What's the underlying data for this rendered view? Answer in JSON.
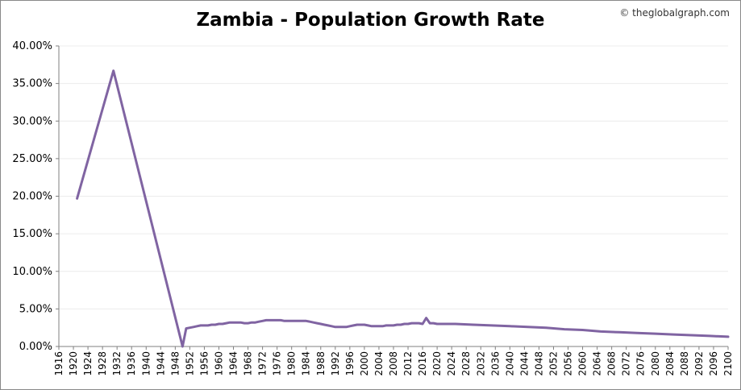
{
  "credit": "© theglobalgraph.com",
  "chart_data": {
    "type": "line",
    "title": "Zambia - Population Growth Rate",
    "xlabel": "",
    "ylabel": "",
    "xlim": [
      1916,
      2100
    ],
    "ylim": [
      0,
      40
    ],
    "y_ticks": [
      "0.00%",
      "5.00%",
      "10.00%",
      "15.00%",
      "20.00%",
      "25.00%",
      "30.00%",
      "35.00%",
      "40.00%"
    ],
    "x_ticks": [
      "1916",
      "1920",
      "1924",
      "1928",
      "1932",
      "1936",
      "1940",
      "1944",
      "1948",
      "1952",
      "1956",
      "1960",
      "1964",
      "1968",
      "1972",
      "1976",
      "1980",
      "1984",
      "1988",
      "1992",
      "1996",
      "2000",
      "2004",
      "2008",
      "2012",
      "2016",
      "2020",
      "2024",
      "2028",
      "2032",
      "2036",
      "2040",
      "2044",
      "2048",
      "2052",
      "2056",
      "2060",
      "2064",
      "2068",
      "2072",
      "2076",
      "2080",
      "2084",
      "2088",
      "2092",
      "2096",
      "2100"
    ],
    "grid": true,
    "line_color": "#8064a2",
    "series": [
      {
        "x": [
          1921,
          1931,
          1950,
          1951,
          1952,
          1953,
          1954,
          1955,
          1956,
          1957,
          1958,
          1959,
          1960,
          1961,
          1962,
          1963,
          1964,
          1965,
          1966,
          1967,
          1968,
          1969,
          1970,
          1971,
          1972,
          1973,
          1974,
          1975,
          1976,
          1977,
          1978,
          1979,
          1980,
          1981,
          1982,
          1983,
          1984,
          1985,
          1986,
          1987,
          1988,
          1989,
          1990,
          1991,
          1992,
          1993,
          1994,
          1995,
          1996,
          1997,
          1998,
          1999,
          2000,
          2001,
          2002,
          2003,
          2004,
          2005,
          2006,
          2007,
          2008,
          2009,
          2010,
          2011,
          2012,
          2013,
          2014,
          2015,
          2016,
          2017,
          2018,
          2019,
          2020,
          2025,
          2030,
          2035,
          2040,
          2045,
          2050,
          2055,
          2060,
          2065,
          2070,
          2075,
          2080,
          2085,
          2090,
          2095,
          2100
        ],
        "y": [
          19.7,
          36.7,
          0.0,
          2.4,
          2.5,
          2.6,
          2.7,
          2.8,
          2.8,
          2.8,
          2.9,
          2.9,
          3.0,
          3.0,
          3.1,
          3.2,
          3.2,
          3.2,
          3.2,
          3.1,
          3.1,
          3.2,
          3.2,
          3.3,
          3.4,
          3.5,
          3.5,
          3.5,
          3.5,
          3.5,
          3.4,
          3.4,
          3.4,
          3.4,
          3.4,
          3.4,
          3.4,
          3.3,
          3.2,
          3.1,
          3.0,
          2.9,
          2.8,
          2.7,
          2.6,
          2.6,
          2.6,
          2.6,
          2.7,
          2.8,
          2.9,
          2.9,
          2.9,
          2.8,
          2.7,
          2.7,
          2.7,
          2.7,
          2.8,
          2.8,
          2.8,
          2.9,
          2.9,
          3.0,
          3.0,
          3.1,
          3.1,
          3.1,
          3.0,
          3.8,
          3.1,
          3.1,
          3.0,
          3.0,
          2.9,
          2.8,
          2.7,
          2.6,
          2.5,
          2.3,
          2.2,
          2.0,
          1.9,
          1.8,
          1.7,
          1.6,
          1.5,
          1.4,
          1.3
        ]
      }
    ]
  }
}
